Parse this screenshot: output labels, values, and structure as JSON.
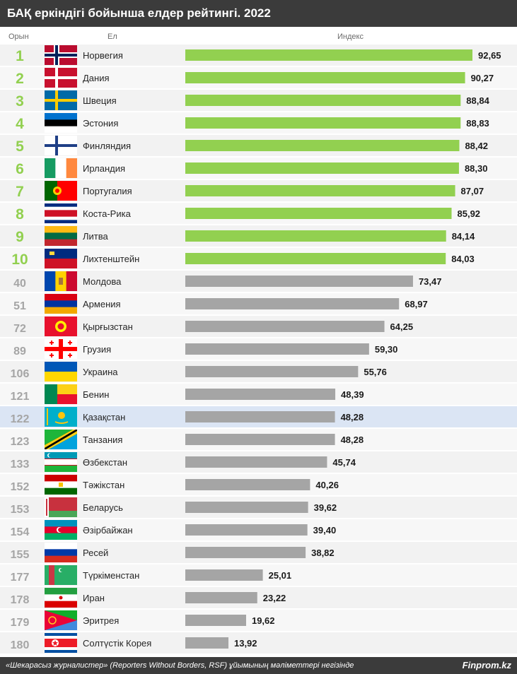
{
  "title": "БАҚ еркіндігі бойынша елдер рейтингі. 2022",
  "columns": {
    "rank": "Орын",
    "country": "Ел",
    "index": "Индекс"
  },
  "colors": {
    "top": "#92d050",
    "rest": "#a5a5a5",
    "highlight": "#dbe5f4",
    "rank_top": "#92d050",
    "rank_rest": "#a5a5a5",
    "header_bg": "#3b3b3b"
  },
  "highlight_country": "Қазақстан",
  "chart_data": {
    "type": "bar",
    "orientation": "horizontal",
    "categories": [
      "Норвегия",
      "Дания",
      "Швеция",
      "Эстония",
      "Финляндия",
      "Ирландия",
      "Португалия",
      "Коста-Рика",
      "Литва",
      "Лихтенштейн",
      "Молдова",
      "Армения",
      "Қырғызстан",
      "Грузия",
      "Украина",
      "Бенин",
      "Қазақстан",
      "Танзания",
      "Өзбекстан",
      "Тәжікстан",
      "Беларусь",
      "Әзірбайжан",
      "Ресей",
      "Түркіменстан",
      "Иран",
      "Эритрея",
      "Солтүстік Корея"
    ],
    "ranks": [
      "1",
      "2",
      "3",
      "4",
      "5",
      "6",
      "7",
      "8",
      "9",
      "10",
      "40",
      "51",
      "72",
      "89",
      "106",
      "121",
      "122",
      "123",
      "133",
      "152",
      "153",
      "154",
      "155",
      "177",
      "178",
      "179",
      "180"
    ],
    "values": [
      92.65,
      90.27,
      88.84,
      88.83,
      88.42,
      88.3,
      87.07,
      85.92,
      84.14,
      84.03,
      73.47,
      68.97,
      64.25,
      59.3,
      55.76,
      48.39,
      48.28,
      48.28,
      45.74,
      40.26,
      39.62,
      39.4,
      38.82,
      25.01,
      23.22,
      19.62,
      13.92
    ],
    "value_labels": [
      "92,65",
      "90,27",
      "88,84",
      "88,83",
      "88,42",
      "88,30",
      "87,07",
      "85,92",
      "84,14",
      "84,03",
      "73,47",
      "68,97",
      "64,25",
      "59,30",
      "55,76",
      "48,39",
      "48,28",
      "48,28",
      "45,74",
      "40,26",
      "39,62",
      "39,40",
      "38,82",
      "25,01",
      "23,22",
      "19,62",
      "13,92"
    ],
    "flags": [
      "norway-flag",
      "denmark-flag",
      "sweden-flag",
      "estonia-flag",
      "finland-flag",
      "ireland-flag",
      "portugal-flag",
      "costa-rica-flag",
      "lithuania-flag",
      "liechtenstein-flag",
      "moldova-flag",
      "armenia-flag",
      "kyrgyzstan-flag",
      "georgia-flag",
      "ukraine-flag",
      "benin-flag",
      "kazakhstan-flag",
      "tanzania-flag",
      "uzbekistan-flag",
      "tajikistan-flag",
      "belarus-flag",
      "azerbaijan-flag",
      "russia-flag",
      "turkmenistan-flag",
      "iran-flag",
      "eritrea-flag",
      "north-korea-flag"
    ],
    "xlim": [
      0,
      100
    ],
    "top_group_size": 10
  },
  "footer": {
    "source": "«Шекарасыз журналистер» (Reporters Without Borders, RSF) ұйымының мәліметтері негізінде",
    "brand": "Finprom.kz"
  }
}
